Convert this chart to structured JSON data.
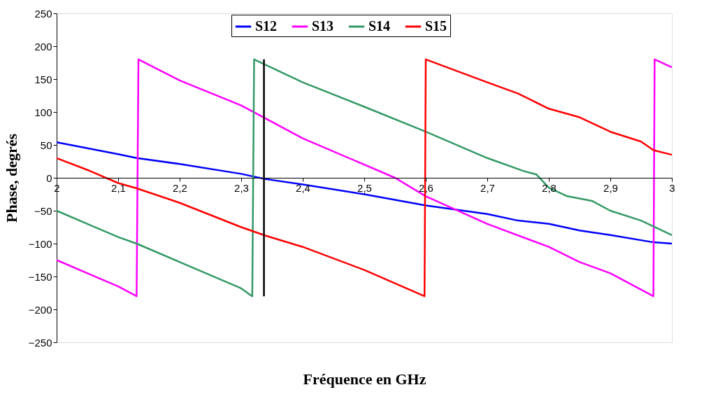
{
  "chart_data": {
    "type": "line",
    "xlabel": "Fréquence en GHz",
    "ylabel": "Phase, degrés",
    "xlim": [
      2,
      3
    ],
    "ylim": [
      -250,
      250
    ],
    "xticks": [
      2,
      {
        "value": 2.1,
        "label": "2,1"
      },
      {
        "value": 2.2,
        "label": "2,2"
      },
      {
        "value": 2.3,
        "label": "2,3"
      },
      {
        "value": 2.4,
        "label": "2,4"
      },
      {
        "value": 2.5,
        "label": "2,5"
      },
      {
        "value": 2.6,
        "label": "2,6"
      },
      {
        "value": 2.7,
        "label": "2,7"
      },
      {
        "value": 2.8,
        "label": "2,8"
      },
      {
        "value": 2.9,
        "label": "2,9"
      },
      3
    ],
    "yticks": [
      -250,
      -200,
      -150,
      -100,
      -50,
      0,
      50,
      100,
      150,
      200,
      250
    ],
    "grid": false,
    "legend": "top",
    "marker": "none",
    "line_style": "solid",
    "series": [
      {
        "name": "S12",
        "color": "#0000ff",
        "x": [
          2.0,
          2.05,
          2.1,
          2.13,
          2.2,
          2.3,
          2.34,
          2.4,
          2.5,
          2.6,
          2.7,
          2.75,
          2.8,
          2.85,
          2.9,
          2.97,
          3.0
        ],
        "values": [
          54,
          45,
          36,
          30,
          21,
          6,
          -2,
          -10,
          -25,
          -42,
          -55,
          -65,
          -70,
          -80,
          -87,
          -98,
          -100
        ]
      },
      {
        "name": "S13",
        "color": "#ff00ff",
        "x": [
          2.0,
          2.05,
          2.1,
          2.13,
          2.133,
          2.2,
          2.3,
          2.34,
          2.4,
          2.5,
          2.55,
          2.6,
          2.7,
          2.8,
          2.85,
          2.9,
          2.97,
          2.972,
          3.0
        ],
        "values": [
          -125,
          -145,
          -165,
          -180,
          180,
          148,
          110,
          90,
          60,
          20,
          0,
          -28,
          -70,
          -105,
          -128,
          -145,
          -180,
          180,
          168
        ]
      },
      {
        "name": "S14",
        "color": "#339966",
        "x": [
          2.0,
          2.05,
          2.1,
          2.13,
          2.2,
          2.3,
          2.318,
          2.321,
          2.4,
          2.5,
          2.6,
          2.7,
          2.76,
          2.78,
          2.8,
          2.83,
          2.87,
          2.9,
          2.95,
          3.0
        ],
        "values": [
          -50,
          -70,
          -90,
          -100,
          -128,
          -168,
          -180,
          180,
          145,
          108,
          70,
          30,
          10,
          5,
          -15,
          -28,
          -35,
          -50,
          -65,
          -87
        ]
      },
      {
        "name": "S15",
        "color": "#ff0000",
        "x": [
          2.0,
          2.05,
          2.1,
          2.13,
          2.2,
          2.3,
          2.34,
          2.4,
          2.5,
          2.598,
          2.6,
          2.7,
          2.75,
          2.8,
          2.85,
          2.9,
          2.95,
          2.97,
          3.0
        ],
        "values": [
          30,
          12,
          -8,
          -16,
          -38,
          -75,
          -88,
          -105,
          -140,
          -180,
          180,
          145,
          128,
          105,
          92,
          70,
          55,
          42,
          35
        ]
      },
      {
        "color": "#000000",
        "x": [
          2.337,
          2.337
        ],
        "values": [
          -180,
          180
        ]
      }
    ]
  }
}
